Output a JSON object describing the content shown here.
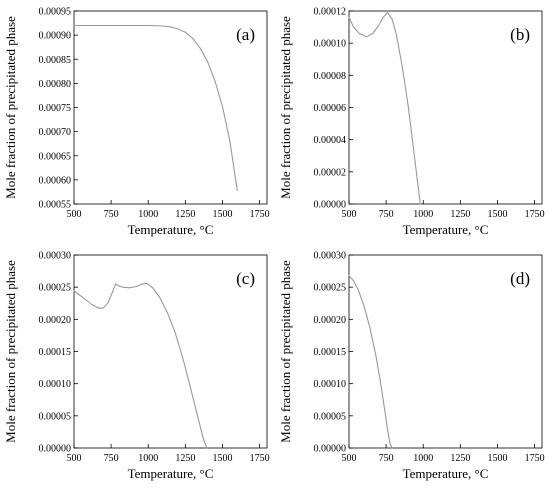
{
  "chart_data": [
    {
      "type": "line",
      "panel_label": "(a)",
      "title": "",
      "xlabel": "Temperature, °C",
      "ylabel": "Mole fraction of precipitated phase",
      "xlim": [
        500,
        1800
      ],
      "ylim": [
        0.00055,
        0.00095
      ],
      "xticks": [
        500,
        750,
        1000,
        1250,
        1500,
        1750
      ],
      "xtick_labels": [
        "500",
        "750",
        "1000",
        "1250",
        "1500",
        "1750"
      ],
      "yticks": [
        0.00055,
        0.0006,
        0.00065,
        0.0007,
        0.00075,
        0.0008,
        0.00085,
        0.0009,
        0.00095
      ],
      "ytick_labels": [
        "0.00055",
        "0.00060",
        "0.00065",
        "0.00070",
        "0.00075",
        "0.00080",
        "0.00085",
        "0.00090",
        "0.00095"
      ],
      "grid": false,
      "line_color": "#999999",
      "series": [
        {
          "x": [
            500,
            800,
            1000,
            1100,
            1150,
            1200,
            1250,
            1300,
            1350,
            1400,
            1450,
            1500,
            1550,
            1600
          ],
          "y": [
            0.00092,
            0.00092,
            0.00092,
            0.000919,
            0.000917,
            0.000913,
            0.000906,
            0.000893,
            0.000873,
            0.000845,
            0.000805,
            0.000752,
            0.00068,
            0.000578
          ]
        }
      ]
    },
    {
      "type": "line",
      "panel_label": "(b)",
      "title": "",
      "xlabel": "Temperature, °C",
      "ylabel": "Mole fraction of precipitated phase",
      "xlim": [
        500,
        1800
      ],
      "ylim": [
        0,
        0.00012
      ],
      "xticks": [
        500,
        750,
        1000,
        1250,
        1500,
        1750
      ],
      "xtick_labels": [
        "500",
        "750",
        "1000",
        "1250",
        "1500",
        "1750"
      ],
      "yticks": [
        0,
        2e-05,
        4e-05,
        6e-05,
        8e-05,
        0.0001,
        0.00012
      ],
      "ytick_labels": [
        "0.00000",
        "0.00002",
        "0.00004",
        "0.00006",
        "0.00008",
        "0.00010",
        "0.00012"
      ],
      "grid": false,
      "line_color": "#999999",
      "series": [
        {
          "x": [
            500,
            530,
            570,
            620,
            660,
            700,
            730,
            760,
            790,
            820,
            860,
            900,
            930,
            960,
            980
          ],
          "y": [
            0.000116,
            0.00011,
            0.000106,
            0.000104,
            0.000106,
            0.000111,
            0.000116,
            0.000119,
            0.000115,
            0.000105,
            8.5e-05,
            6e-05,
            3.8e-05,
            1.5e-05,
            0
          ]
        }
      ]
    },
    {
      "type": "line",
      "panel_label": "(c)",
      "title": "",
      "xlabel": "Temperature, °C",
      "ylabel": "Mole fraction of precipitated phase",
      "xlim": [
        500,
        1800
      ],
      "ylim": [
        0,
        0.0003
      ],
      "xticks": [
        500,
        750,
        1000,
        1250,
        1500,
        1750
      ],
      "xtick_labels": [
        "500",
        "750",
        "1000",
        "1250",
        "1500",
        "1750"
      ],
      "yticks": [
        0,
        5e-05,
        0.0001,
        0.00015,
        0.0002,
        0.00025,
        0.0003
      ],
      "ytick_labels": [
        "0.00000",
        "0.00005",
        "0.00010",
        "0.00015",
        "0.00020",
        "0.00025",
        "0.00030"
      ],
      "grid": false,
      "line_color": "#999999",
      "series": [
        {
          "x": [
            500,
            560,
            620,
            670,
            700,
            730,
            760,
            780,
            800,
            830,
            870,
            920,
            960,
            990,
            1030,
            1080,
            1130,
            1180,
            1230,
            1280,
            1330,
            1370,
            1395
          ],
          "y": [
            0.000244,
            0.000234,
            0.000223,
            0.000217,
            0.000218,
            0.000226,
            0.000243,
            0.000255,
            0.000252,
            0.00025,
            0.000249,
            0.000251,
            0.000255,
            0.000256,
            0.000249,
            0.000233,
            0.00021,
            0.00018,
            0.000142,
            9.8e-05,
            5.2e-05,
            1.5e-05,
            0
          ]
        }
      ]
    },
    {
      "type": "line",
      "panel_label": "(d)",
      "title": "",
      "xlabel": "Temperature, °C",
      "ylabel": "Mole fraction of precipitated phase",
      "xlim": [
        500,
        1800
      ],
      "ylim": [
        0,
        0.0003
      ],
      "xticks": [
        500,
        750,
        1000,
        1250,
        1500,
        1750
      ],
      "xtick_labels": [
        "500",
        "750",
        "1000",
        "1250",
        "1500",
        "1750"
      ],
      "yticks": [
        0,
        5e-05,
        0.0001,
        0.00015,
        0.0002,
        0.00025,
        0.0003
      ],
      "ytick_labels": [
        "0.00000",
        "0.00005",
        "0.00010",
        "0.00015",
        "0.00020",
        "0.00025",
        "0.00030"
      ],
      "grid": false,
      "line_color": "#999999",
      "series": [
        {
          "x": [
            500,
            530,
            560,
            600,
            640,
            680,
            710,
            740,
            760,
            775,
            790
          ],
          "y": [
            0.000268,
            0.00026,
            0.000247,
            0.000222,
            0.000188,
            0.000145,
            0.000105,
            6e-05,
            2.8e-05,
            8e-06,
            0
          ]
        }
      ]
    }
  ]
}
